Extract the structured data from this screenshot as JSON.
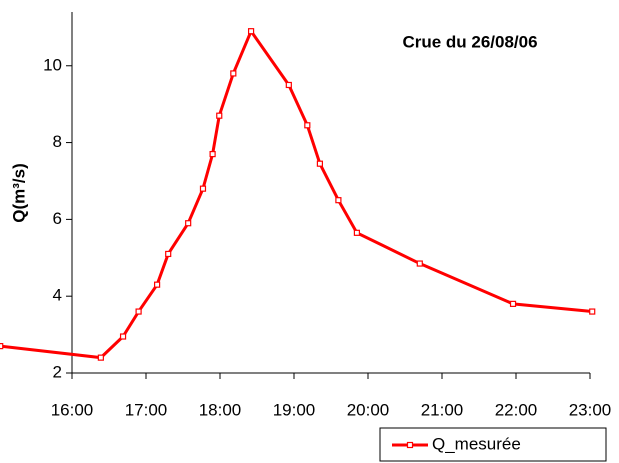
{
  "chart_data": {
    "type": "line",
    "title": "Crue du 26/08/06",
    "y_label": "Q(m³/s)",
    "x": [
      15.03,
      16.39,
      16.69,
      16.9,
      17.15,
      17.3,
      17.57,
      17.77,
      17.9,
      17.99,
      18.18,
      18.42,
      18.93,
      19.18,
      19.35,
      19.6,
      19.85,
      20.7,
      21.96,
      23.03
    ],
    "series": [
      {
        "name": "Q_mesurée",
        "color": "#ff0000",
        "values": [
          2.7,
          2.4,
          2.95,
          3.6,
          4.3,
          5.1,
          5.9,
          6.8,
          7.7,
          8.7,
          9.8,
          10.9,
          9.5,
          8.45,
          7.45,
          6.5,
          5.65,
          4.85,
          3.8,
          3.6
        ]
      }
    ],
    "xlim": [
      16,
      23
    ],
    "xticks": [
      {
        "value": 16,
        "label": "16:00"
      },
      {
        "value": 17,
        "label": "17:00"
      },
      {
        "value": 18,
        "label": "18:00"
      },
      {
        "value": 19,
        "label": "19:00"
      },
      {
        "value": 20,
        "label": "20:00"
      },
      {
        "value": 21,
        "label": "21:00"
      },
      {
        "value": 22,
        "label": "22:00"
      },
      {
        "value": 23,
        "label": "23:00"
      }
    ],
    "ylim": [
      2,
      11.4
    ],
    "yticks": [
      2,
      4,
      6,
      8,
      10
    ],
    "grid": false,
    "legend": "bottom-right"
  }
}
